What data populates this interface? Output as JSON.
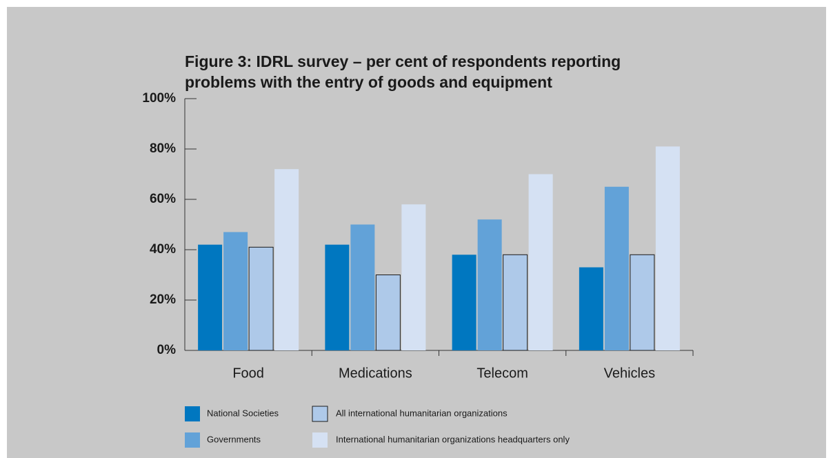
{
  "chart_data": {
    "type": "bar",
    "title": "Figure 3: IDRL survey – per cent of respondents reporting problems with the entry of goods and equipment",
    "categories": [
      "Food",
      "Medications",
      "Telecom",
      "Vehicles"
    ],
    "series": [
      {
        "name": "National Societies",
        "color": "#0077c0",
        "values": [
          42,
          42,
          38,
          33
        ]
      },
      {
        "name": "Governments",
        "color": "#62a2d8",
        "values": [
          47,
          50,
          52,
          65
        ]
      },
      {
        "name": "All international humanitarian organizations",
        "color": "#aec9e9",
        "edgecolor": "#1a1a1a",
        "values": [
          41,
          30,
          38,
          38
        ]
      },
      {
        "name": "International humanitarian organizations headquarters only",
        "color": "#d5e1f3",
        "values": [
          72,
          58,
          70,
          81
        ]
      }
    ],
    "ylim": [
      0,
      100
    ],
    "yticks": [
      {
        "value": 0,
        "label": "0%"
      },
      {
        "value": 20,
        "label": "20%"
      },
      {
        "value": 40,
        "label": "40%"
      },
      {
        "value": 60,
        "label": "60%"
      },
      {
        "value": 80,
        "label": "80%"
      },
      {
        "value": 100,
        "label": "100%"
      }
    ],
    "grid": false,
    "legend": "bottom"
  }
}
